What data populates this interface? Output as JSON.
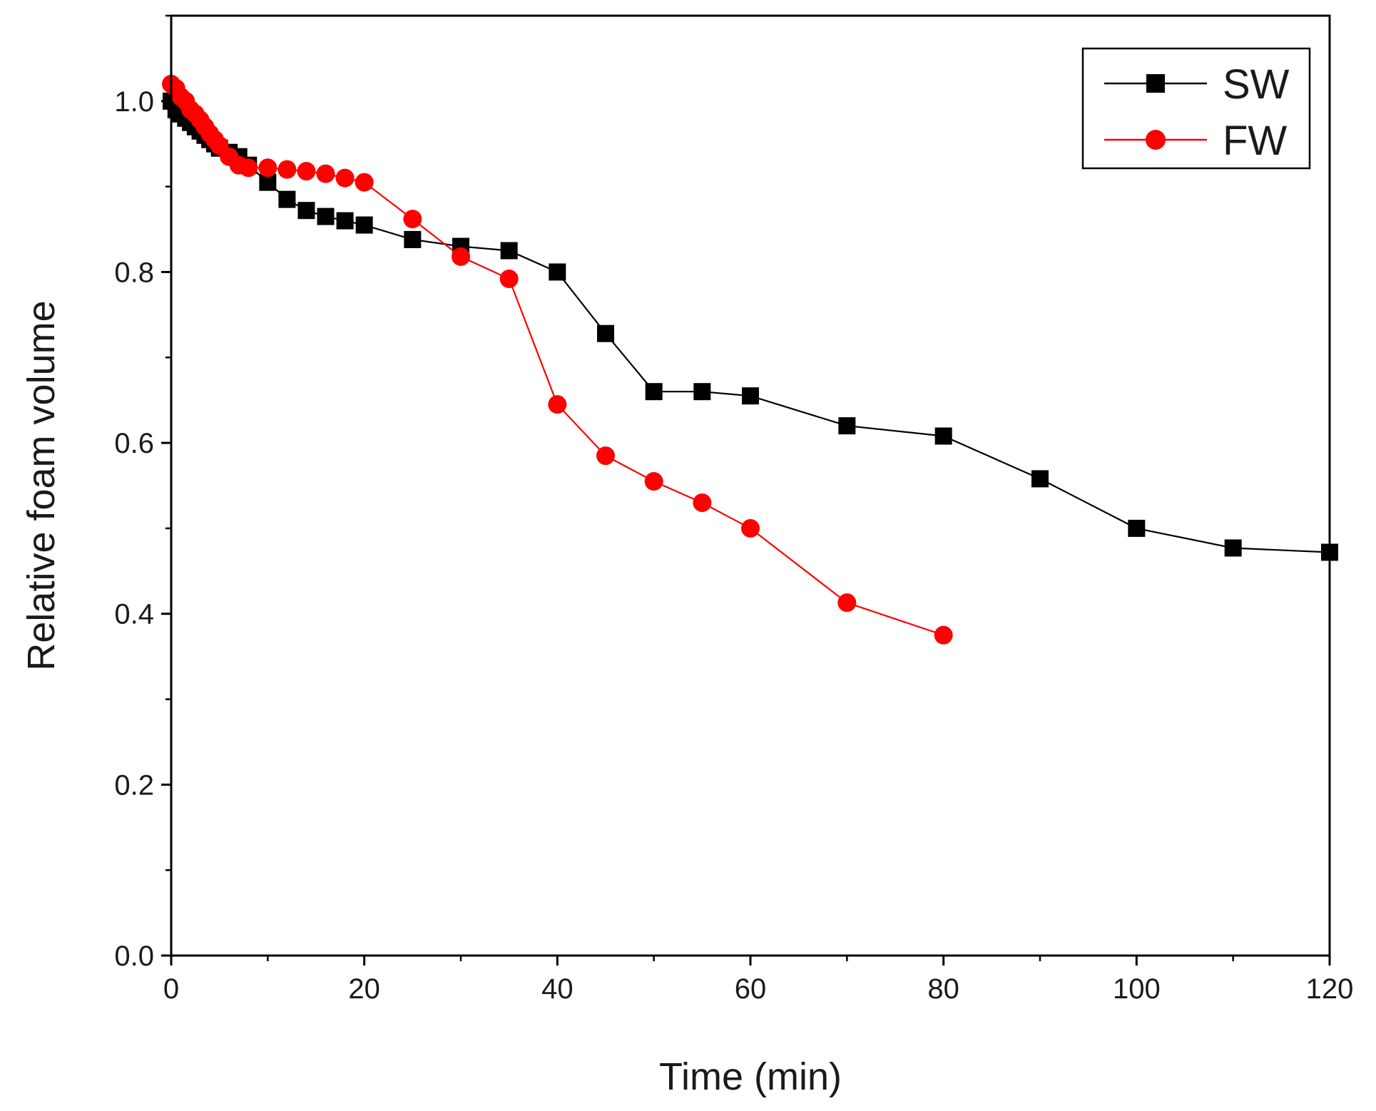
{
  "chart_data": {
    "type": "line",
    "title": "",
    "xlabel": "Time (min)",
    "ylabel": "Relative foam volume",
    "xlim": [
      0,
      120
    ],
    "ylim": [
      0,
      1.1
    ],
    "xticks": [
      0,
      20,
      40,
      60,
      80,
      100,
      120
    ],
    "xtick_labels": [
      "0",
      "20",
      "40",
      "60",
      "80",
      "100",
      "120"
    ],
    "yticks": [
      0.0,
      0.2,
      0.4,
      0.6,
      0.8,
      1.0
    ],
    "ytick_labels": [
      "0.0",
      "0.2",
      "0.4",
      "0.6",
      "0.8",
      "1.0"
    ],
    "grid": false,
    "legend_position": "top-right",
    "series": [
      {
        "name": "SW",
        "color": "#000000",
        "marker": "square",
        "x": [
          0,
          0.5,
          1,
          1.5,
          2,
          2.5,
          3,
          3.5,
          4,
          4.5,
          5,
          6,
          7,
          8,
          10,
          12,
          14,
          16,
          18,
          20,
          25,
          30,
          35,
          40,
          45,
          50,
          55,
          60,
          70,
          80,
          90,
          100,
          110,
          120
        ],
        "y": [
          1.0,
          0.99,
          0.985,
          0.98,
          0.975,
          0.97,
          0.965,
          0.96,
          0.955,
          0.95,
          0.945,
          0.94,
          0.935,
          0.925,
          0.905,
          0.885,
          0.872,
          0.865,
          0.86,
          0.855,
          0.838,
          0.83,
          0.825,
          0.8,
          0.728,
          0.66,
          0.66,
          0.655,
          0.62,
          0.608,
          0.558,
          0.5,
          0.477,
          0.472
        ]
      },
      {
        "name": "FW",
        "color": "#ff0000",
        "marker": "circle",
        "x": [
          0,
          0.5,
          1,
          1.5,
          2,
          2.5,
          3,
          3.5,
          4,
          4.5,
          5,
          6,
          7,
          8,
          10,
          12,
          14,
          16,
          18,
          20,
          25,
          30,
          35,
          40,
          45,
          50,
          55,
          60,
          70,
          80
        ],
        "y": [
          1.02,
          1.015,
          1.005,
          1.0,
          0.99,
          0.985,
          0.978,
          0.97,
          0.962,
          0.955,
          0.948,
          0.935,
          0.925,
          0.922,
          0.922,
          0.92,
          0.918,
          0.915,
          0.91,
          0.905,
          0.862,
          0.818,
          0.792,
          0.645,
          0.585,
          0.555,
          0.53,
          0.5,
          0.413,
          0.375
        ]
      }
    ]
  }
}
